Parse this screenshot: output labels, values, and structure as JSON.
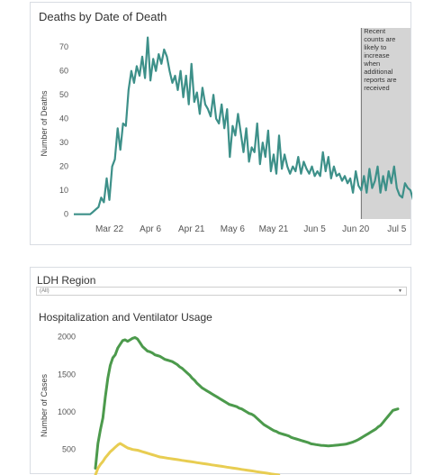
{
  "deaths_panel": {
    "title": "Deaths by Date of Death",
    "annotation": [
      "Recent",
      "counts are",
      "likely to",
      "increase",
      "when",
      "additional",
      "reports are",
      "received"
    ]
  },
  "region_filter": {
    "label": "LDH Region",
    "value": "(All)"
  },
  "hosp_panel": {
    "title": "Hospitalization and Ventilator Usage"
  },
  "colors": {
    "deaths_line": "#3d9089",
    "hospitalized_line": "#4c9a4c",
    "ventilator_line": "#e8cd52",
    "shaded_region": "#d4d4d4"
  },
  "chart_data": [
    {
      "type": "line",
      "title": "Deaths by Date of Death",
      "xlabel": "",
      "ylabel": "Number of Deaths",
      "x_tick_labels": [
        "Mar 22",
        "Apr 6",
        "Apr 21",
        "May 6",
        "May 21",
        "Jun 5",
        "Jun 20",
        "Jul 5"
      ],
      "x_tick_dates": [
        "2020-03-22",
        "2020-04-06",
        "2020-04-21",
        "2020-05-06",
        "2020-05-21",
        "2020-06-05",
        "2020-06-20",
        "2020-07-05"
      ],
      "x_range": [
        "2020-03-09",
        "2020-07-10"
      ],
      "y_ticks": [
        0,
        10,
        20,
        30,
        40,
        50,
        60,
        70
      ],
      "ylim": [
        -2,
        78
      ],
      "grid": false,
      "shaded_from": "2020-06-22",
      "series": [
        {
          "x_start": "2020-03-09",
          "values": [
            0,
            0,
            0,
            0,
            0,
            0,
            0,
            1,
            2,
            3,
            7,
            5,
            15,
            6,
            20,
            23,
            36,
            27,
            38,
            37,
            52,
            60,
            55,
            62,
            58,
            66,
            57,
            74,
            56,
            65,
            60,
            67,
            63,
            69,
            66,
            60,
            55,
            58,
            52,
            60,
            49,
            58,
            46,
            63,
            47,
            51,
            42,
            53,
            46,
            44,
            41,
            50,
            40,
            38,
            46,
            36,
            44,
            24,
            37,
            33,
            42,
            34,
            26,
            36,
            22,
            28,
            26,
            38,
            21,
            30,
            24,
            35,
            18,
            25,
            17,
            33,
            19,
            25,
            20,
            17,
            20,
            18,
            24,
            17,
            22,
            19,
            17,
            20,
            16,
            18,
            16,
            26,
            18,
            24,
            15,
            20,
            16,
            17,
            14,
            16,
            13,
            15,
            9,
            18,
            12,
            10,
            16,
            9,
            19,
            11,
            14,
            20,
            9,
            16,
            10,
            18,
            13,
            20,
            11,
            8,
            7,
            13,
            11,
            10,
            6,
            12,
            11,
            12,
            11,
            7,
            1
          ]
        }
      ]
    },
    {
      "type": "line",
      "title": "Hospitalization and Ventilator Usage",
      "xlabel": "",
      "ylabel": "Number of Cases",
      "y_ticks": [
        500,
        1000,
        1500,
        2000
      ],
      "ylim": [
        160,
        2080
      ],
      "grid": false,
      "series": [
        {
          "color_key": "hospitalized_line",
          "values": [
            250,
            580,
            760,
            920,
            1200,
            1450,
            1620,
            1720,
            1760,
            1850,
            1900,
            1950,
            1960,
            1940,
            1960,
            1980,
            1990,
            1970,
            1920,
            1870,
            1840,
            1810,
            1800,
            1785,
            1760,
            1750,
            1740,
            1720,
            1700,
            1690,
            1680,
            1670,
            1650,
            1630,
            1600,
            1580,
            1550,
            1520,
            1490,
            1450,
            1420,
            1380,
            1350,
            1320,
            1300,
            1280,
            1260,
            1240,
            1220,
            1200,
            1180,
            1160,
            1140,
            1120,
            1100,
            1090,
            1080,
            1070,
            1050,
            1040,
            1020,
            1000,
            980,
            970,
            950,
            920,
            890,
            860,
            830,
            810,
            790,
            770,
            750,
            740,
            720,
            710,
            700,
            690,
            680,
            660,
            650,
            640,
            630,
            620,
            610,
            600,
            590,
            575,
            570,
            565,
            560,
            555,
            552,
            550,
            548,
            550,
            553,
            556,
            560,
            563,
            567,
            570,
            580,
            590,
            600,
            615,
            630,
            650,
            670,
            690,
            710,
            730,
            750,
            770,
            800,
            820,
            860,
            900,
            940,
            980,
            1020,
            1030,
            1040
          ]
        },
        {
          "color_key": "ventilator_line",
          "values": [
            160,
            250,
            300,
            340,
            390,
            430,
            470,
            500,
            530,
            560,
            580,
            560,
            540,
            520,
            510,
            500,
            495,
            490,
            480,
            470,
            460,
            450,
            440,
            430,
            420,
            410,
            400,
            395,
            390,
            385,
            380,
            375,
            370,
            365,
            360,
            355,
            350,
            345,
            340,
            335,
            330,
            325,
            320,
            315,
            310,
            305,
            300,
            295,
            290,
            285,
            280,
            275,
            270,
            265,
            260,
            255,
            250,
            245,
            240,
            235,
            230,
            225,
            220,
            215,
            210,
            205,
            200,
            195,
            190,
            185,
            180,
            175,
            170,
            165,
            160
          ]
        }
      ]
    }
  ]
}
